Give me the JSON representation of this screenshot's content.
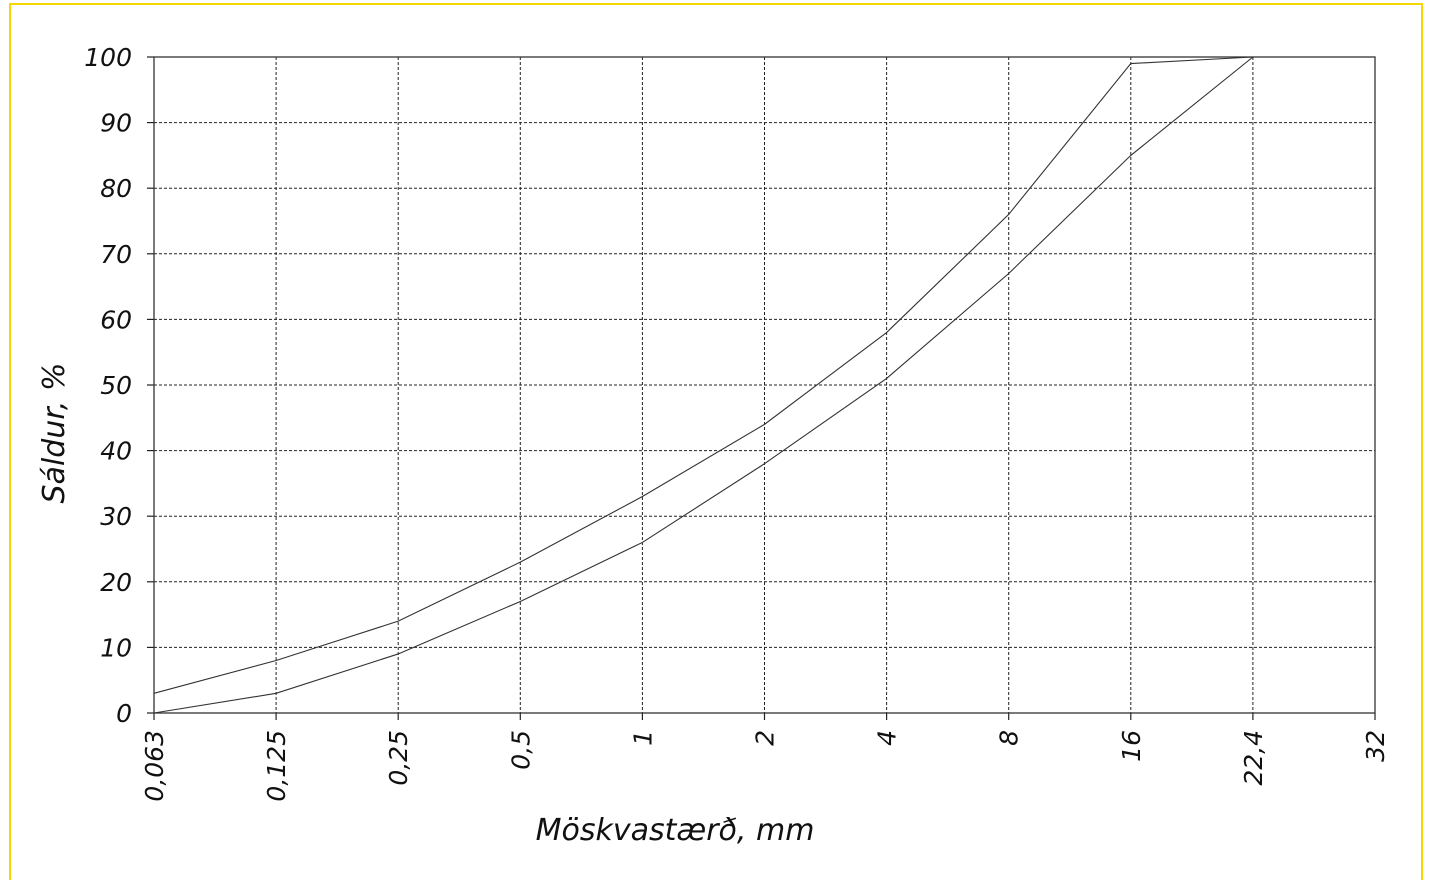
{
  "chart_data": {
    "type": "line",
    "title": "",
    "xlabel": "Möskvastærð, mm",
    "ylabel": "Sáldur, %",
    "x_ticks": [
      "0,063",
      "0,125",
      "0,25",
      "0,5",
      "1",
      "2",
      "4",
      "8",
      "16",
      "22,4",
      "32"
    ],
    "y_ticks": [
      "0",
      "10",
      "20",
      "30",
      "40",
      "50",
      "60",
      "70",
      "80",
      "90",
      "100"
    ],
    "ylim": [
      0,
      100
    ],
    "grid": true,
    "series": [
      {
        "x": [
          "0,063",
          "0,125",
          "0,25",
          "0,5",
          "1",
          "2",
          "4",
          "8",
          "16",
          "22,4"
        ],
        "values": [
          3,
          8,
          14,
          23,
          33,
          44,
          58,
          76,
          99,
          100
        ]
      },
      {
        "x": [
          "0,063",
          "0,125",
          "0,25",
          "0,5",
          "1",
          "2",
          "4",
          "8",
          "16",
          "22,4"
        ],
        "values": [
          0,
          3,
          9,
          17,
          26,
          38,
          51,
          67,
          85,
          100
        ]
      }
    ],
    "colors": {
      "line": "#333333",
      "grid": "#222222",
      "frame": "#f5d800"
    }
  }
}
